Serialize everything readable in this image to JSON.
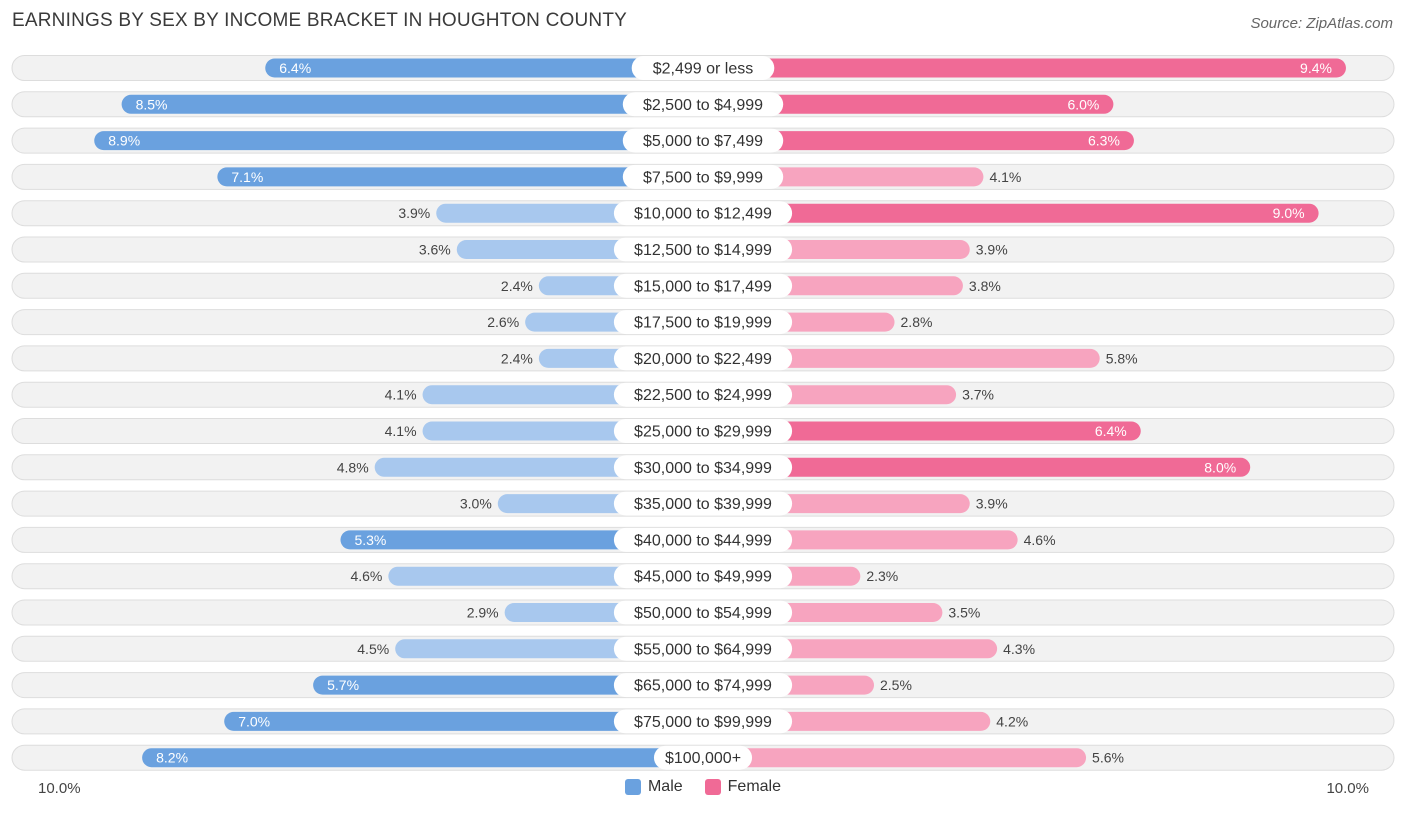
{
  "title": "EARNINGS BY SEX BY INCOME BRACKET IN HOUGHTON COUNTY",
  "source": "Source: ZipAtlas.com",
  "colors": {
    "male": "#6aa1df",
    "male_light": "#a8c8ee",
    "female": "#f06a96",
    "female_light": "#f7a4bf",
    "row_bg": "#f2f2f2",
    "row_border": "#dddddd"
  },
  "legend": {
    "male": "Male",
    "female": "Female"
  },
  "axis": {
    "left_label": "10.0%",
    "right_label": "10.0%"
  },
  "chart_data": {
    "type": "bar",
    "orientation": "horizontal-diverging",
    "title": "EARNINGS BY SEX BY INCOME BRACKET IN HOUGHTON COUNTY",
    "xlim": [
      -10,
      10
    ],
    "categories": [
      "$2,499 or less",
      "$2,500 to $4,999",
      "$5,000 to $7,499",
      "$7,500 to $9,999",
      "$10,000 to $12,499",
      "$12,500 to $14,999",
      "$15,000 to $17,499",
      "$17,500 to $19,999",
      "$20,000 to $22,499",
      "$22,500 to $24,999",
      "$25,000 to $29,999",
      "$30,000 to $34,999",
      "$35,000 to $39,999",
      "$40,000 to $44,999",
      "$45,000 to $49,999",
      "$50,000 to $54,999",
      "$55,000 to $64,999",
      "$65,000 to $74,999",
      "$75,000 to $99,999",
      "$100,000+"
    ],
    "series": [
      {
        "name": "Male",
        "values": [
          6.4,
          8.5,
          8.9,
          7.1,
          3.9,
          3.6,
          2.4,
          2.6,
          2.4,
          4.1,
          4.1,
          4.8,
          3.0,
          5.3,
          4.6,
          2.9,
          4.5,
          5.7,
          7.0,
          8.2
        ],
        "labels": [
          "6.4%",
          "8.5%",
          "8.9%",
          "7.1%",
          "3.9%",
          "3.6%",
          "2.4%",
          "2.6%",
          "2.4%",
          "4.1%",
          "4.1%",
          "4.8%",
          "3.0%",
          "5.3%",
          "4.6%",
          "2.9%",
          "4.5%",
          "5.7%",
          "7.0%",
          "8.2%"
        ]
      },
      {
        "name": "Female",
        "values": [
          9.4,
          6.0,
          6.3,
          4.1,
          9.0,
          3.9,
          3.8,
          2.8,
          5.8,
          3.7,
          6.4,
          8.0,
          3.9,
          4.6,
          2.3,
          3.5,
          4.3,
          2.5,
          4.2,
          5.6
        ],
        "labels": [
          "9.4%",
          "6.0%",
          "6.3%",
          "4.1%",
          "9.0%",
          "3.9%",
          "3.8%",
          "2.8%",
          "5.8%",
          "3.7%",
          "6.4%",
          "8.0%",
          "3.9%",
          "4.6%",
          "2.3%",
          "3.5%",
          "4.3%",
          "2.5%",
          "4.2%",
          "5.6%"
        ]
      }
    ]
  }
}
